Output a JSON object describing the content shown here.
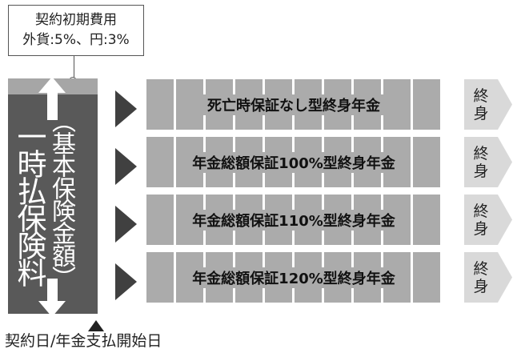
{
  "callout": {
    "line1": "契約初期費用",
    "line2": "外貨:5%、円:3%"
  },
  "premium": {
    "main": "一時払保険料",
    "sub": "（基本保険金額）"
  },
  "start_label": "契約日/年金支払開始日",
  "annuities": [
    {
      "label": "死亡時保証なし型終身年金",
      "term_line1": "終",
      "term_line2": "身"
    },
    {
      "label": "年金総額保証100%型終身年金",
      "term_line1": "終",
      "term_line2": "身"
    },
    {
      "label": "年金総額保証110%型終身年金",
      "term_line1": "終",
      "term_line2": "身"
    },
    {
      "label": "年金総額保証120%型終身年金",
      "term_line1": "終",
      "term_line2": "身"
    }
  ],
  "colors": {
    "premium_column": "#595959",
    "bar": "#ababab",
    "pointer": "#404040",
    "chevron": "#d9d9d9"
  }
}
